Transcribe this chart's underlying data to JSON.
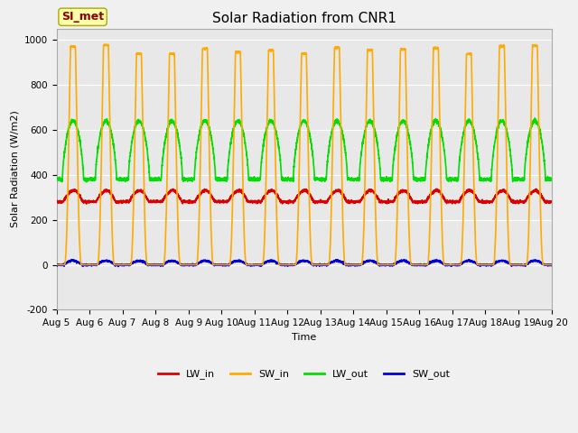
{
  "title": "Solar Radiation from CNR1",
  "ylabel": "Solar Radiation (W/m2)",
  "xlabel": "Time",
  "ylim": [
    -200,
    1050
  ],
  "yticks": [
    -200,
    0,
    200,
    400,
    600,
    800,
    1000
  ],
  "fig_bg": "#f0f0f0",
  "plot_bg": "#e8e8e8",
  "annotation": "SI_met",
  "colors": {
    "LW_in": "#dd0000",
    "SW_in": "#ffaa00",
    "LW_out": "#00dd00",
    "SW_out": "#0000dd"
  },
  "xtick_labels": [
    "Aug 5",
    "Aug 6",
    "Aug 7",
    "Aug 8",
    "Aug 9",
    "Aug 10",
    "Aug 11",
    "Aug 12",
    "Aug 13",
    "Aug 14",
    "Aug 15",
    "Aug 16",
    "Aug 17",
    "Aug 18",
    "Aug 19",
    "Aug 20"
  ],
  "n_days": 15,
  "points_per_day": 288,
  "LW_in_base": 280,
  "LW_in_amp": 50,
  "SW_in_peak": 980,
  "LW_out_base": 380,
  "LW_out_amp": 260,
  "SW_out_peak": 18,
  "title_fontsize": 11,
  "axis_fontsize": 8,
  "tick_fontsize": 7.5,
  "legend_fontsize": 8,
  "linewidth": 1.2
}
